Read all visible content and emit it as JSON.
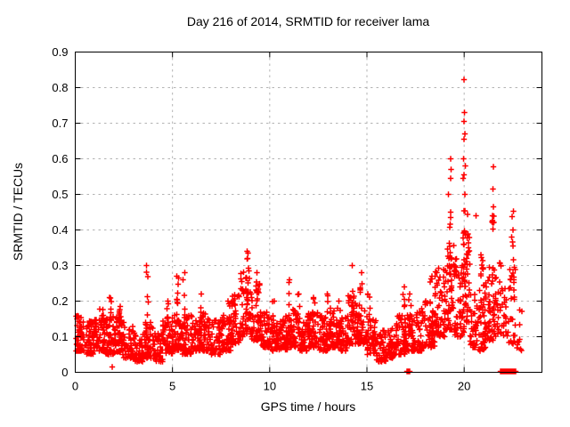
{
  "chart_data": {
    "type": "scatter",
    "title": "Day 216 of 2014, SRMTID for receiver lama",
    "xlabel": "GPS time / hours",
    "ylabel": "SRMTID / TECUs",
    "xlim": [
      0,
      24
    ],
    "ylim": [
      0,
      0.9
    ],
    "xticks": [
      0,
      5,
      10,
      15,
      20
    ],
    "xtick_labels": [
      "0",
      "5",
      "10",
      "15",
      "20"
    ],
    "yticks": [
      0,
      0.1,
      0.2,
      0.3,
      0.4,
      0.5,
      0.6,
      0.7,
      0.8,
      0.9
    ],
    "ytick_labels": [
      "0",
      "0.1",
      "0.2",
      "0.3",
      "0.4",
      "0.5",
      "0.6",
      "0.7",
      "0.8",
      "0.9"
    ],
    "grid": true,
    "grid_style": "dashed",
    "grid_color": "#b3b3b3",
    "legend": "none",
    "marker": "plus",
    "marker_color": "#ff0000",
    "axis_color": "#000000",
    "bands_format": "[x_start_h, x_end_h, n_points, y_min_TECU, y_max_TECU] dense baseline scatter read off plot",
    "bands": [
      [
        0.0,
        0.5,
        55,
        0.06,
        0.16
      ],
      [
        0.5,
        1.0,
        55,
        0.05,
        0.15
      ],
      [
        1.0,
        1.5,
        55,
        0.06,
        0.18
      ],
      [
        1.5,
        2.0,
        55,
        0.05,
        0.17
      ],
      [
        2.0,
        2.5,
        55,
        0.05,
        0.16
      ],
      [
        2.5,
        3.0,
        50,
        0.04,
        0.13
      ],
      [
        3.0,
        3.5,
        50,
        0.03,
        0.11
      ],
      [
        3.5,
        4.0,
        50,
        0.04,
        0.14
      ],
      [
        4.0,
        4.5,
        50,
        0.03,
        0.11
      ],
      [
        4.5,
        5.0,
        50,
        0.05,
        0.16
      ],
      [
        5.0,
        5.5,
        50,
        0.06,
        0.17
      ],
      [
        5.5,
        6.0,
        50,
        0.05,
        0.16
      ],
      [
        6.0,
        6.5,
        50,
        0.06,
        0.15
      ],
      [
        6.5,
        7.0,
        50,
        0.06,
        0.17
      ],
      [
        7.0,
        7.5,
        50,
        0.05,
        0.15
      ],
      [
        7.5,
        8.0,
        50,
        0.06,
        0.16
      ],
      [
        8.0,
        8.5,
        50,
        0.08,
        0.22
      ],
      [
        8.5,
        9.0,
        55,
        0.1,
        0.3
      ],
      [
        9.0,
        9.5,
        55,
        0.09,
        0.26
      ],
      [
        9.5,
        10.0,
        50,
        0.07,
        0.18
      ],
      [
        10.0,
        10.5,
        50,
        0.06,
        0.15
      ],
      [
        10.5,
        11.0,
        50,
        0.06,
        0.16
      ],
      [
        11.0,
        11.5,
        50,
        0.07,
        0.18
      ],
      [
        11.5,
        12.0,
        50,
        0.06,
        0.16
      ],
      [
        12.0,
        12.5,
        50,
        0.07,
        0.17
      ],
      [
        12.5,
        13.0,
        50,
        0.06,
        0.16
      ],
      [
        13.0,
        13.5,
        50,
        0.07,
        0.18
      ],
      [
        13.5,
        14.0,
        50,
        0.06,
        0.16
      ],
      [
        14.0,
        14.5,
        50,
        0.08,
        0.22
      ],
      [
        14.5,
        15.0,
        50,
        0.08,
        0.2
      ],
      [
        15.0,
        15.5,
        50,
        0.05,
        0.15
      ],
      [
        15.5,
        16.0,
        45,
        0.03,
        0.12
      ],
      [
        16.0,
        16.5,
        45,
        0.04,
        0.13
      ],
      [
        16.5,
        17.0,
        50,
        0.05,
        0.16
      ],
      [
        17.0,
        17.5,
        50,
        0.06,
        0.17
      ],
      [
        17.5,
        18.0,
        50,
        0.06,
        0.18
      ],
      [
        18.0,
        18.5,
        50,
        0.07,
        0.2
      ],
      [
        18.5,
        19.0,
        55,
        0.1,
        0.3
      ],
      [
        19.0,
        19.5,
        55,
        0.12,
        0.38
      ],
      [
        19.5,
        20.0,
        55,
        0.1,
        0.32
      ],
      [
        20.0,
        20.3,
        40,
        0.14,
        0.46
      ],
      [
        20.3,
        20.6,
        30,
        0.07,
        0.22
      ],
      [
        20.6,
        21.1,
        50,
        0.06,
        0.3
      ],
      [
        21.1,
        21.5,
        40,
        0.09,
        0.3
      ],
      [
        21.5,
        21.9,
        35,
        0.1,
        0.32
      ],
      [
        21.9,
        22.3,
        20,
        0.1,
        0.26
      ],
      [
        22.3,
        22.7,
        25,
        0.08,
        0.3
      ],
      [
        22.7,
        23.0,
        8,
        0.06,
        0.22
      ]
    ],
    "spikes_format": "[x_h, y_min, y_max, n_points] narrow vertical columns of markers",
    "spikes": [
      [
        1.8,
        0.12,
        0.21,
        6
      ],
      [
        2.3,
        0.12,
        0.185,
        5
      ],
      [
        3.7,
        0.1,
        0.3,
        12
      ],
      [
        4.75,
        0.12,
        0.2,
        5
      ],
      [
        5.25,
        0.12,
        0.27,
        8
      ],
      [
        5.6,
        0.12,
        0.28,
        8
      ],
      [
        6.5,
        0.12,
        0.22,
        6
      ],
      [
        7.9,
        0.12,
        0.2,
        5
      ],
      [
        8.85,
        0.18,
        0.34,
        10
      ],
      [
        9.35,
        0.16,
        0.28,
        8
      ],
      [
        10.2,
        0.1,
        0.2,
        5
      ],
      [
        11.0,
        0.12,
        0.26,
        6
      ],
      [
        11.5,
        0.12,
        0.22,
        5
      ],
      [
        12.3,
        0.12,
        0.21,
        5
      ],
      [
        13.0,
        0.12,
        0.22,
        5
      ],
      [
        13.6,
        0.12,
        0.2,
        4
      ],
      [
        14.25,
        0.12,
        0.3,
        9
      ],
      [
        14.7,
        0.12,
        0.28,
        7
      ],
      [
        15.1,
        0.1,
        0.22,
        5
      ],
      [
        16.9,
        0.1,
        0.24,
        6
      ],
      [
        17.2,
        0.1,
        0.22,
        5
      ],
      [
        18.3,
        0.1,
        0.27,
        6
      ],
      [
        19.3,
        0.2,
        0.45,
        10
      ],
      [
        20.0,
        0.2,
        0.5,
        14
      ],
      [
        20.9,
        0.15,
        0.33,
        8
      ],
      [
        21.5,
        0.18,
        0.44,
        10
      ],
      [
        22.5,
        0.12,
        0.38,
        8
      ]
    ],
    "outliers_format": "[x_h, y_TECU] individually visible high/low points",
    "outliers": [
      [
        1.9,
        0.015
      ],
      [
        19.2,
        0.5
      ],
      [
        19.3,
        0.545
      ],
      [
        19.32,
        0.57
      ],
      [
        19.3,
        0.6
      ],
      [
        19.95,
        0.545
      ],
      [
        20.0,
        0.555
      ],
      [
        20.05,
        0.58
      ],
      [
        19.98,
        0.6
      ],
      [
        20.0,
        0.655
      ],
      [
        20.03,
        0.67
      ],
      [
        20.0,
        0.705
      ],
      [
        20.02,
        0.73
      ],
      [
        20.0,
        0.822
      ],
      [
        20.6,
        0.44
      ],
      [
        21.5,
        0.465
      ],
      [
        21.47,
        0.515
      ],
      [
        21.5,
        0.578
      ],
      [
        21.9,
        0.3
      ],
      [
        22.47,
        0.437
      ],
      [
        22.5,
        0.4
      ],
      [
        22.53,
        0.452
      ],
      [
        22.85,
        0.175
      ],
      [
        22.9,
        0.065
      ]
    ],
    "zero_runs_format": "[x_start_h, x_end_h, n_points] clusters of points at y=0 on the axis",
    "zero_runs": [
      [
        17.05,
        17.2,
        8
      ],
      [
        21.88,
        22.05,
        5
      ],
      [
        22.1,
        22.25,
        8
      ],
      [
        22.3,
        22.45,
        8
      ],
      [
        22.5,
        22.65,
        8
      ]
    ]
  }
}
